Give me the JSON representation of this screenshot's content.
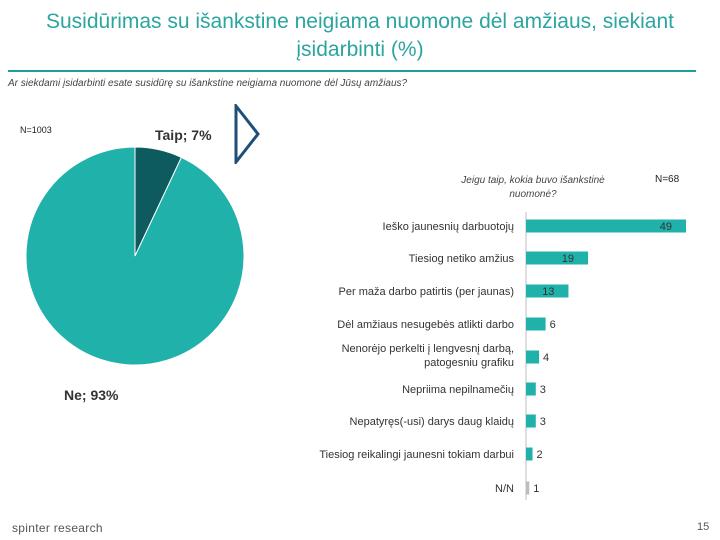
{
  "header": {
    "title": "Susidūrimas su išankstine neigiama nuomone dėl amžiaus, siekiant įsidarbinti (%)",
    "question": "Ar siekdami įsidarbinti esate susidūrę su išankstine neigiama nuomone dėl Jūsų amžiaus?"
  },
  "footer": {
    "logo": "spinter research",
    "page": "15"
  },
  "colors": {
    "teal": "#20b2aa",
    "dark_teal": "#0d5b5e",
    "title": "#2aa5a0",
    "bar": "#20b2aa",
    "nn_bar": "#bdbdbd"
  },
  "chart_data": [
    {
      "type": "pie",
      "n_label": "N=1003",
      "slices": [
        {
          "label": "Taip; 7%",
          "value": 7,
          "color": "#0d5b5e"
        },
        {
          "label": "Ne; 93%",
          "value": 93,
          "color": "#20b2aa"
        }
      ]
    },
    {
      "type": "bar",
      "orientation": "horizontal",
      "subtitle": "Jeigu taip, kokia buvo išankstinė nuomonė?",
      "n_label": "N=68",
      "categories": [
        "Ieško jaunesnių darbuotojų",
        "Tiesiog netiko amžius",
        "Per maža darbo patirtis (per jaunas)",
        "Dėl amžiaus nesugebės atlikti darbo",
        "Nenorėjo perkelti į lengvesnį darbą, patogesniu grafiku",
        "Nepriima nepilnamečių",
        "Nepatyręs(-usi) darys daug klaidų",
        "Tiesiog reikalingi jaunesni tokiam darbui",
        "N/N"
      ],
      "values": [
        49,
        19,
        13,
        6,
        4,
        3,
        3,
        2,
        1
      ]
    }
  ]
}
